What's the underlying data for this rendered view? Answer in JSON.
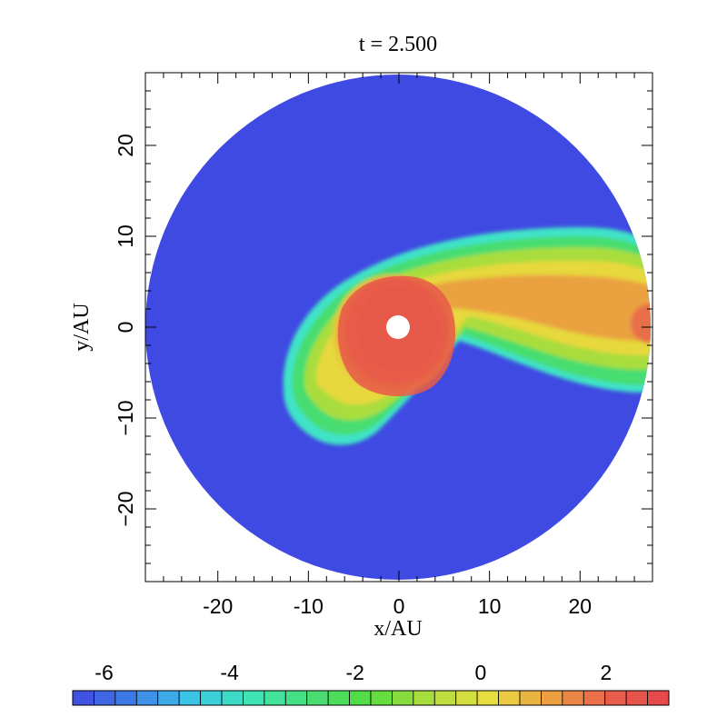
{
  "chart_data": {
    "type": "heatmap",
    "title": "t = 2.500",
    "xlabel": "x/AU",
    "ylabel": "y/AU",
    "xlim": [
      -28,
      28
    ],
    "ylim": [
      -28,
      28
    ],
    "x_ticks": [
      -20,
      -10,
      0,
      10,
      20
    ],
    "y_ticks": [
      -20,
      -10,
      0,
      10,
      20
    ],
    "x_tick_labels": [
      "-20",
      "-10",
      "0",
      "10",
      "20"
    ],
    "y_tick_labels": [
      "−20",
      "−10",
      "0",
      "10",
      "20"
    ],
    "domain": {
      "shape": "disk",
      "outer_radius": 28,
      "inner_hole_radius": 1.2
    },
    "features": [
      {
        "name": "central-clump",
        "center": [
          0,
          0
        ],
        "radius": 6,
        "value": 2.5
      },
      {
        "name": "trailing-arm",
        "direction": "+x",
        "peak_value": 2.0,
        "edge_value": -4.5
      },
      {
        "name": "outer-shell",
        "center": [
          -2,
          -2.5
        ],
        "value_range": [
          -4.5,
          1.5
        ]
      }
    ],
    "background_value": -6.5,
    "colorbar": {
      "range": [
        -6.5,
        3
      ],
      "ticks": [
        -6,
        -4,
        -2,
        0,
        2
      ],
      "tick_labels": [
        "-6",
        "-4",
        "-2",
        "0",
        "2"
      ],
      "colors": [
        "#3f48e0",
        "#3d7fe6",
        "#3cc6e8",
        "#40e4b6",
        "#46dd74",
        "#55dc3f",
        "#b2dd3e",
        "#e8de40",
        "#eca040",
        "#e8604a",
        "#e4444a"
      ],
      "segments": 28
    }
  }
}
